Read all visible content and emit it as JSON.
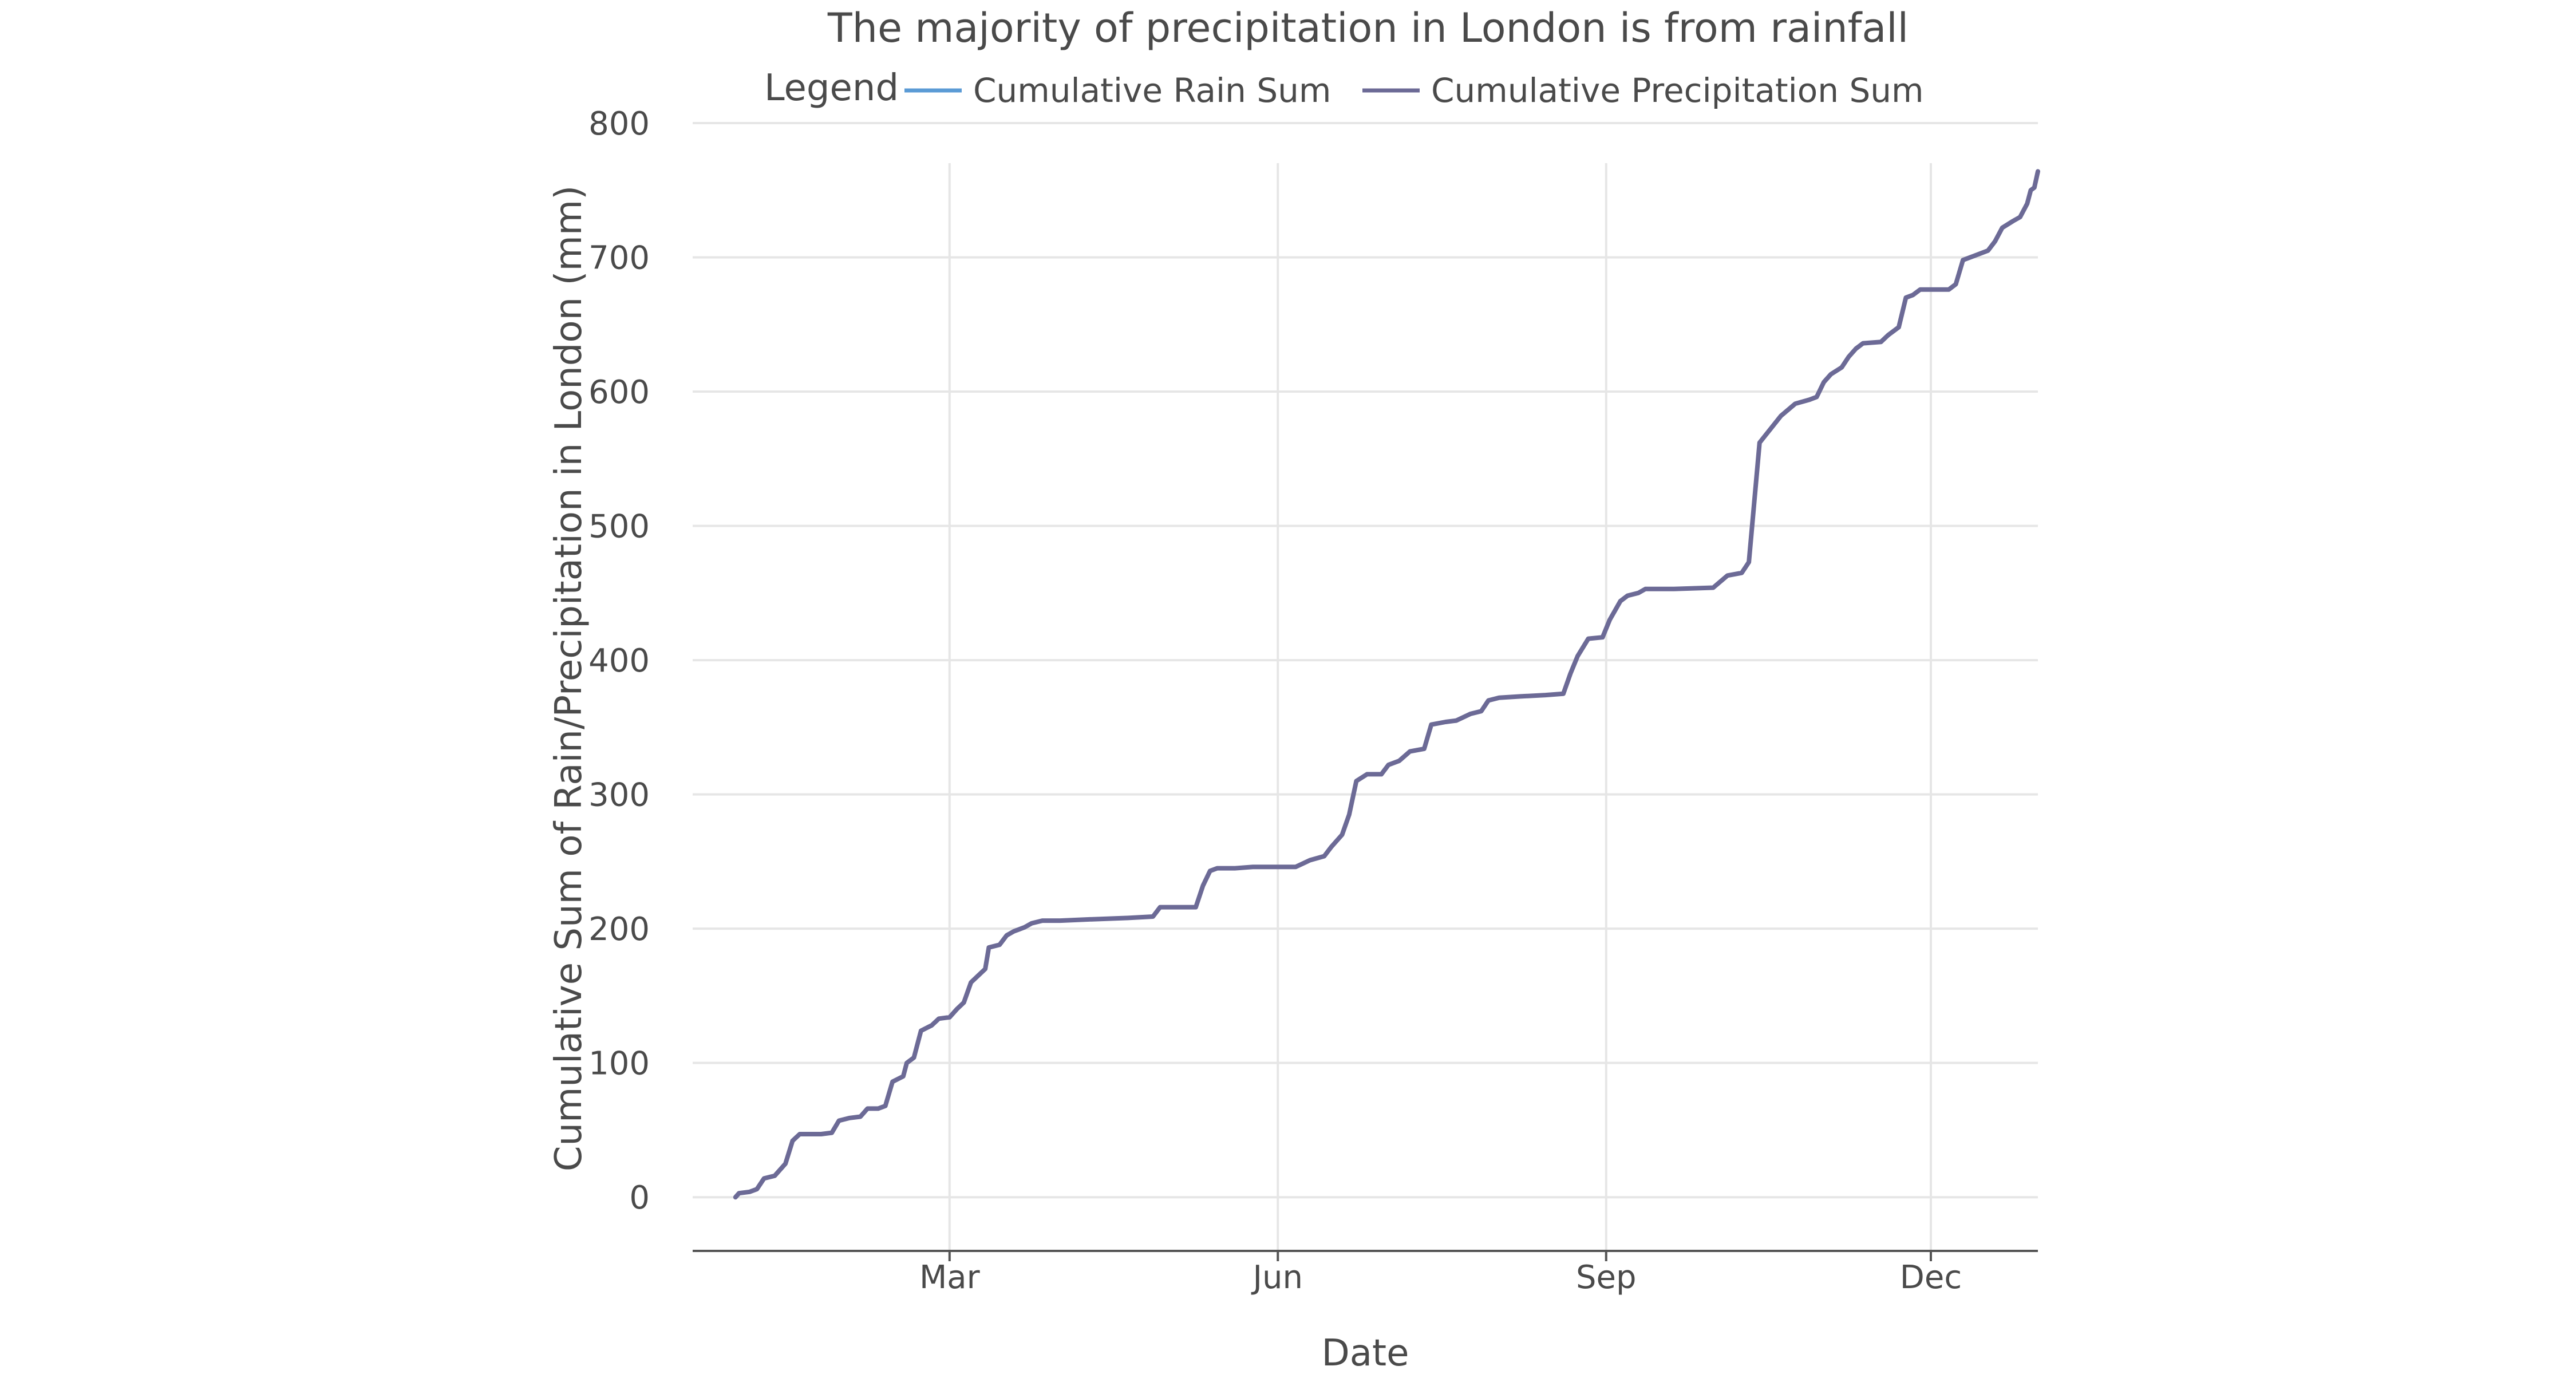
{
  "chart_data": {
    "type": "line",
    "title": "The majority of precipitation in London is from rainfall",
    "xlabel": "Date",
    "ylabel": "Cumulative Sum of Rain/Precipitation in London (mm)",
    "legend_title": "Legend",
    "legend_position": "top-center",
    "grid": true,
    "ylim": [
      -40,
      800
    ],
    "yticks": [
      0,
      100,
      200,
      300,
      400,
      500,
      600,
      700,
      800
    ],
    "xlim": [
      "2023-12-20",
      "2024-12-31"
    ],
    "xticks": [
      {
        "date": "2024-03-01",
        "label": "Mar"
      },
      {
        "date": "2024-06-01",
        "label": "Jun"
      },
      {
        "date": "2024-09-01",
        "label": "Sep"
      },
      {
        "date": "2024-12-01",
        "label": "Dec"
      }
    ],
    "colors": {
      "Cumulative Rain Sum": "#5b9bd5",
      "Cumulative Precipitation Sum": "#6c6a96"
    },
    "series": [
      {
        "name": "Cumulative Rain Sum",
        "points": [
          [
            "2024-01-01",
            0
          ],
          [
            "2024-01-02",
            3
          ],
          [
            "2024-01-05",
            4
          ],
          [
            "2024-01-07",
            6
          ],
          [
            "2024-01-09",
            14
          ],
          [
            "2024-01-12",
            16
          ],
          [
            "2024-01-15",
            25
          ],
          [
            "2024-01-17",
            42
          ],
          [
            "2024-01-19",
            47
          ],
          [
            "2024-01-22",
            47
          ],
          [
            "2024-01-25",
            47
          ],
          [
            "2024-01-28",
            48
          ],
          [
            "2024-01-30",
            57
          ],
          [
            "2024-02-02",
            59
          ],
          [
            "2024-02-05",
            60
          ],
          [
            "2024-02-07",
            66
          ],
          [
            "2024-02-10",
            66
          ],
          [
            "2024-02-12",
            68
          ],
          [
            "2024-02-14",
            86
          ],
          [
            "2024-02-17",
            90
          ],
          [
            "2024-02-18",
            100
          ],
          [
            "2024-02-20",
            104
          ],
          [
            "2024-02-22",
            124
          ],
          [
            "2024-02-25",
            128
          ],
          [
            "2024-02-27",
            133
          ],
          [
            "2024-03-01",
            134
          ],
          [
            "2024-03-03",
            140
          ],
          [
            "2024-03-05",
            145
          ],
          [
            "2024-03-07",
            160
          ],
          [
            "2024-03-09",
            165
          ],
          [
            "2024-03-11",
            170
          ],
          [
            "2024-03-12",
            186
          ],
          [
            "2024-03-15",
            188
          ],
          [
            "2024-03-17",
            195
          ],
          [
            "2024-03-19",
            198
          ],
          [
            "2024-03-22",
            201
          ],
          [
            "2024-03-24",
            204
          ],
          [
            "2024-03-27",
            206
          ],
          [
            "2024-04-01",
            206
          ],
          [
            "2024-04-10",
            207
          ],
          [
            "2024-04-20",
            208
          ],
          [
            "2024-04-27",
            209
          ],
          [
            "2024-04-29",
            216
          ],
          [
            "2024-05-05",
            216
          ],
          [
            "2024-05-09",
            216
          ],
          [
            "2024-05-11",
            232
          ],
          [
            "2024-05-13",
            243
          ],
          [
            "2024-05-15",
            245
          ],
          [
            "2024-05-20",
            245
          ],
          [
            "2024-05-25",
            246
          ],
          [
            "2024-06-01",
            246
          ],
          [
            "2024-06-06",
            246
          ],
          [
            "2024-06-10",
            251
          ],
          [
            "2024-06-14",
            254
          ],
          [
            "2024-06-16",
            261
          ],
          [
            "2024-06-19",
            270
          ],
          [
            "2024-06-21",
            285
          ],
          [
            "2024-06-23",
            310
          ],
          [
            "2024-06-26",
            315
          ],
          [
            "2024-06-30",
            315
          ],
          [
            "2024-07-02",
            322
          ],
          [
            "2024-07-05",
            325
          ],
          [
            "2024-07-08",
            332
          ],
          [
            "2024-07-12",
            334
          ],
          [
            "2024-07-14",
            352
          ],
          [
            "2024-07-18",
            354
          ],
          [
            "2024-07-21",
            355
          ],
          [
            "2024-07-25",
            360
          ],
          [
            "2024-07-28",
            362
          ],
          [
            "2024-07-30",
            370
          ],
          [
            "2024-08-02",
            372
          ],
          [
            "2024-08-08",
            373
          ],
          [
            "2024-08-15",
            374
          ],
          [
            "2024-08-20",
            375
          ],
          [
            "2024-08-22",
            390
          ],
          [
            "2024-08-24",
            403
          ],
          [
            "2024-08-27",
            416
          ],
          [
            "2024-08-31",
            417
          ],
          [
            "2024-09-02",
            430
          ],
          [
            "2024-09-05",
            444
          ],
          [
            "2024-09-07",
            448
          ],
          [
            "2024-09-10",
            450
          ],
          [
            "2024-09-12",
            453
          ],
          [
            "2024-09-20",
            453
          ],
          [
            "2024-10-01",
            454
          ],
          [
            "2024-10-05",
            463
          ],
          [
            "2024-10-09",
            465
          ],
          [
            "2024-10-11",
            473
          ],
          [
            "2024-10-14",
            562
          ],
          [
            "2024-10-17",
            572
          ],
          [
            "2024-10-20",
            582
          ],
          [
            "2024-10-24",
            591
          ],
          [
            "2024-10-28",
            594
          ],
          [
            "2024-10-30",
            596
          ],
          [
            "2024-11-01",
            607
          ],
          [
            "2024-11-03",
            613
          ],
          [
            "2024-11-06",
            618
          ],
          [
            "2024-11-08",
            626
          ],
          [
            "2024-11-10",
            632
          ],
          [
            "2024-11-12",
            636
          ],
          [
            "2024-11-17",
            637
          ],
          [
            "2024-11-19",
            642
          ],
          [
            "2024-11-22",
            648
          ],
          [
            "2024-11-24",
            670
          ],
          [
            "2024-11-26",
            672
          ],
          [
            "2024-11-28",
            676
          ],
          [
            "2024-12-02",
            676
          ],
          [
            "2024-12-06",
            676
          ],
          [
            "2024-12-08",
            680
          ],
          [
            "2024-12-10",
            698
          ],
          [
            "2024-12-13",
            701
          ],
          [
            "2024-12-17",
            705
          ],
          [
            "2024-12-19",
            712
          ],
          [
            "2024-12-21",
            722
          ],
          [
            "2024-12-24",
            727
          ],
          [
            "2024-12-26",
            730
          ],
          [
            "2024-12-28",
            740
          ],
          [
            "2024-12-29",
            750
          ],
          [
            "2024-12-30",
            752
          ],
          [
            "2024-12-31",
            764
          ]
        ]
      },
      {
        "name": "Cumulative Precipitation Sum",
        "points": [
          [
            "2024-01-01",
            0
          ],
          [
            "2024-01-02",
            3
          ],
          [
            "2024-01-05",
            4
          ],
          [
            "2024-01-07",
            6
          ],
          [
            "2024-01-09",
            14
          ],
          [
            "2024-01-12",
            16
          ],
          [
            "2024-01-15",
            25
          ],
          [
            "2024-01-17",
            42
          ],
          [
            "2024-01-19",
            47
          ],
          [
            "2024-01-22",
            47
          ],
          [
            "2024-01-25",
            47
          ],
          [
            "2024-01-28",
            48
          ],
          [
            "2024-01-30",
            57
          ],
          [
            "2024-02-02",
            59
          ],
          [
            "2024-02-05",
            60
          ],
          [
            "2024-02-07",
            66
          ],
          [
            "2024-02-10",
            66
          ],
          [
            "2024-02-12",
            68
          ],
          [
            "2024-02-14",
            86
          ],
          [
            "2024-02-17",
            90
          ],
          [
            "2024-02-18",
            100
          ],
          [
            "2024-02-20",
            104
          ],
          [
            "2024-02-22",
            124
          ],
          [
            "2024-02-25",
            128
          ],
          [
            "2024-02-27",
            133
          ],
          [
            "2024-03-01",
            134
          ],
          [
            "2024-03-03",
            140
          ],
          [
            "2024-03-05",
            145
          ],
          [
            "2024-03-07",
            160
          ],
          [
            "2024-03-09",
            165
          ],
          [
            "2024-03-11",
            170
          ],
          [
            "2024-03-12",
            186
          ],
          [
            "2024-03-15",
            188
          ],
          [
            "2024-03-17",
            195
          ],
          [
            "2024-03-19",
            198
          ],
          [
            "2024-03-22",
            201
          ],
          [
            "2024-03-24",
            204
          ],
          [
            "2024-03-27",
            206
          ],
          [
            "2024-04-01",
            206
          ],
          [
            "2024-04-10",
            207
          ],
          [
            "2024-04-20",
            208
          ],
          [
            "2024-04-27",
            209
          ],
          [
            "2024-04-29",
            216
          ],
          [
            "2024-05-05",
            216
          ],
          [
            "2024-05-09",
            216
          ],
          [
            "2024-05-11",
            232
          ],
          [
            "2024-05-13",
            243
          ],
          [
            "2024-05-15",
            245
          ],
          [
            "2024-05-20",
            245
          ],
          [
            "2024-05-25",
            246
          ],
          [
            "2024-06-01",
            246
          ],
          [
            "2024-06-06",
            246
          ],
          [
            "2024-06-10",
            251
          ],
          [
            "2024-06-14",
            254
          ],
          [
            "2024-06-16",
            261
          ],
          [
            "2024-06-19",
            270
          ],
          [
            "2024-06-21",
            285
          ],
          [
            "2024-06-23",
            310
          ],
          [
            "2024-06-26",
            315
          ],
          [
            "2024-06-30",
            315
          ],
          [
            "2024-07-02",
            322
          ],
          [
            "2024-07-05",
            325
          ],
          [
            "2024-07-08",
            332
          ],
          [
            "2024-07-12",
            334
          ],
          [
            "2024-07-14",
            352
          ],
          [
            "2024-07-18",
            354
          ],
          [
            "2024-07-21",
            355
          ],
          [
            "2024-07-25",
            360
          ],
          [
            "2024-07-28",
            362
          ],
          [
            "2024-07-30",
            370
          ],
          [
            "2024-08-02",
            372
          ],
          [
            "2024-08-08",
            373
          ],
          [
            "2024-08-15",
            374
          ],
          [
            "2024-08-20",
            375
          ],
          [
            "2024-08-22",
            390
          ],
          [
            "2024-08-24",
            403
          ],
          [
            "2024-08-27",
            416
          ],
          [
            "2024-08-31",
            417
          ],
          [
            "2024-09-02",
            430
          ],
          [
            "2024-09-05",
            444
          ],
          [
            "2024-09-07",
            448
          ],
          [
            "2024-09-10",
            450
          ],
          [
            "2024-09-12",
            453
          ],
          [
            "2024-09-20",
            453
          ],
          [
            "2024-10-01",
            454
          ],
          [
            "2024-10-05",
            463
          ],
          [
            "2024-10-09",
            465
          ],
          [
            "2024-10-11",
            473
          ],
          [
            "2024-10-14",
            562
          ],
          [
            "2024-10-17",
            572
          ],
          [
            "2024-10-20",
            582
          ],
          [
            "2024-10-24",
            591
          ],
          [
            "2024-10-28",
            594
          ],
          [
            "2024-10-30",
            596
          ],
          [
            "2024-11-01",
            607
          ],
          [
            "2024-11-03",
            613
          ],
          [
            "2024-11-06",
            618
          ],
          [
            "2024-11-08",
            626
          ],
          [
            "2024-11-10",
            632
          ],
          [
            "2024-11-12",
            636
          ],
          [
            "2024-11-17",
            637
          ],
          [
            "2024-11-19",
            642
          ],
          [
            "2024-11-22",
            648
          ],
          [
            "2024-11-24",
            670
          ],
          [
            "2024-11-26",
            672
          ],
          [
            "2024-11-28",
            676
          ],
          [
            "2024-12-02",
            676
          ],
          [
            "2024-12-06",
            676
          ],
          [
            "2024-12-08",
            680
          ],
          [
            "2024-12-10",
            698
          ],
          [
            "2024-12-13",
            701
          ],
          [
            "2024-12-17",
            705
          ],
          [
            "2024-12-19",
            712
          ],
          [
            "2024-12-21",
            722
          ],
          [
            "2024-12-24",
            727
          ],
          [
            "2024-12-26",
            730
          ],
          [
            "2024-12-28",
            740
          ],
          [
            "2024-12-29",
            750
          ],
          [
            "2024-12-30",
            752
          ],
          [
            "2024-12-31",
            764
          ]
        ]
      }
    ]
  }
}
